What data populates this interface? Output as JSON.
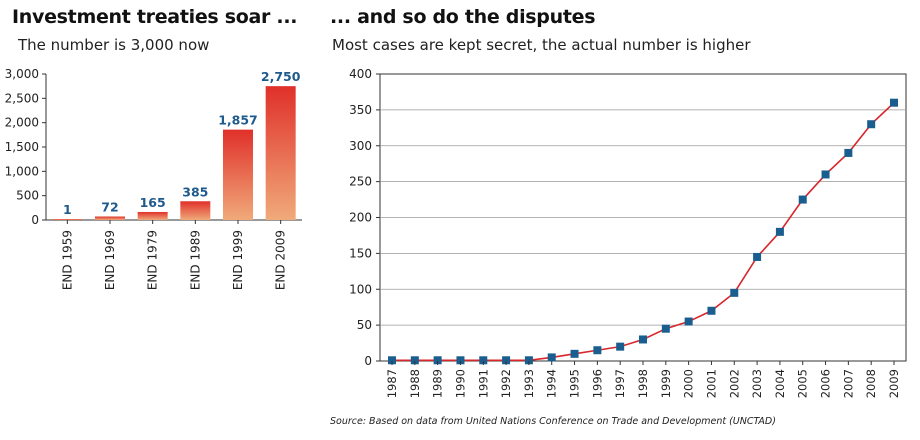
{
  "header_left": {
    "title": "Investment treaties soar ...",
    "subtitle": "The number is 3,000 now"
  },
  "header_right": {
    "title": "... and so do the disputes",
    "subtitle": "Most cases are kept secret, the actual number is higher"
  },
  "source": "Source: Based on data from United Nations Conference on Trade and Development (UNCTAD)",
  "colors": {
    "bar_top": "#e0302a",
    "bar_bottom": "#f0aa7a",
    "value_label": "#1f5a8c",
    "line": "#d8262b",
    "marker": "#1a5d8f",
    "grid": "#9a9a9a"
  },
  "chart_data": [
    {
      "type": "bar",
      "categories": [
        "END 1959",
        "END 1969",
        "END 1979",
        "END 1989",
        "END 1999",
        "END 2009"
      ],
      "values": [
        1,
        72,
        165,
        385,
        1857,
        2750
      ],
      "value_labels": [
        "1",
        "72",
        "165",
        "385",
        "1,857",
        "2,750"
      ],
      "ylim": [
        0,
        3000
      ],
      "yticks": [
        0,
        500,
        1000,
        1500,
        2000,
        2500,
        3000
      ],
      "ytick_labels": [
        "0",
        "500",
        "1,000",
        "1,500",
        "2,000",
        "2,500",
        "3,000"
      ],
      "grid": false
    },
    {
      "type": "line",
      "x": [
        "1987",
        "1988",
        "1989",
        "1990",
        "1991",
        "1992",
        "1993",
        "1994",
        "1995",
        "1996",
        "1997",
        "1998",
        "1999",
        "2000",
        "2001",
        "2002",
        "2003",
        "2004",
        "2005",
        "2006",
        "2007",
        "2008",
        "2009"
      ],
      "values": [
        1,
        1,
        1,
        1,
        1,
        1,
        1,
        5,
        10,
        15,
        20,
        30,
        45,
        55,
        70,
        95,
        145,
        180,
        225,
        260,
        290,
        330,
        360
      ],
      "ylim": [
        0,
        400
      ],
      "yticks": [
        0,
        50,
        100,
        150,
        200,
        250,
        300,
        350,
        400
      ],
      "ytick_labels": [
        "0",
        "50",
        "100",
        "150",
        "200",
        "250",
        "300",
        "350",
        "400"
      ],
      "grid": true
    }
  ]
}
